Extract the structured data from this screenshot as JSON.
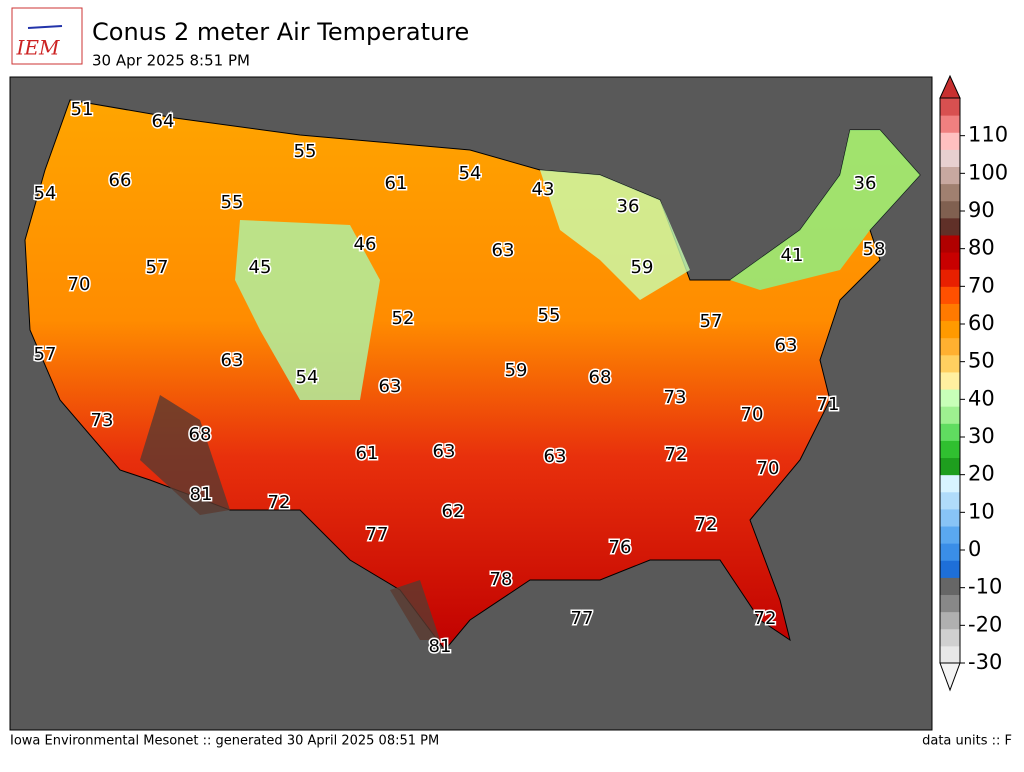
{
  "logo": "IEM",
  "title": "Conus 2 meter Air Temperature",
  "subtitle": "30 Apr 2025 8:51 PM",
  "footer_left": "Iowa Environmental Mesonet :: generated 30 April 2025 08:51 PM",
  "footer_right": "data units :: F",
  "colorbar": {
    "ticks": [
      -30,
      -20,
      -10,
      0,
      10,
      20,
      30,
      40,
      50,
      60,
      70,
      80,
      90,
      100,
      110
    ],
    "lim": [
      -30,
      120
    ]
  },
  "stations": [
    51,
    64,
    55,
    61,
    54,
    43,
    36,
    54,
    66,
    55,
    36,
    46,
    63,
    41,
    58,
    45,
    57,
    59,
    70,
    52,
    55,
    57,
    63,
    57,
    63,
    54,
    63,
    59,
    68,
    73,
    70,
    71,
    73,
    68,
    61,
    63,
    63,
    72,
    70,
    81,
    72,
    62,
    72,
    77,
    76,
    78,
    77,
    72,
    81
  ]
}
